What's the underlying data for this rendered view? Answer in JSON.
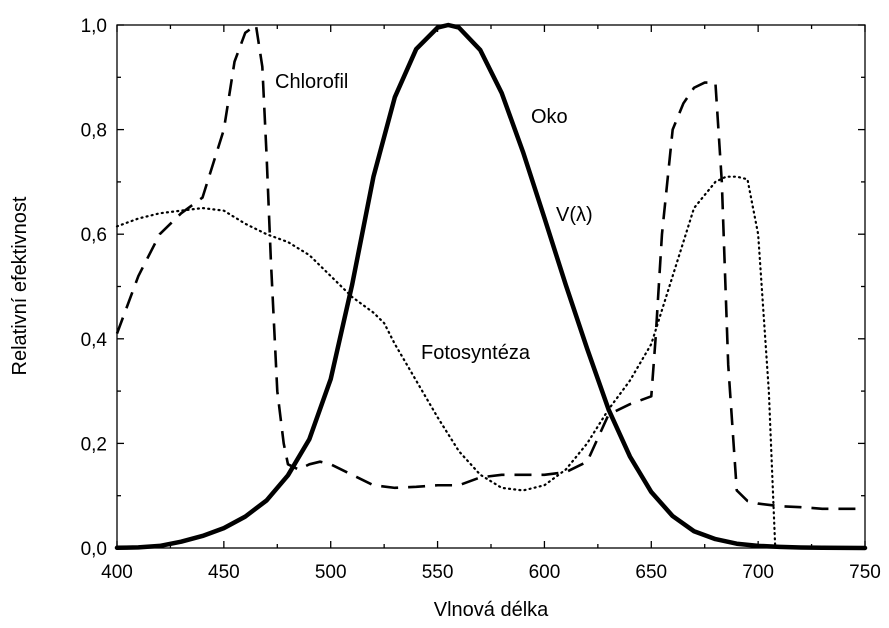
{
  "chart_data": {
    "type": "line",
    "title": "",
    "xlabel": "Vlnová délka",
    "ylabel": "Relativní efektivnost",
    "xlim": [
      400,
      750
    ],
    "ylim": [
      0,
      1
    ],
    "xticks": [
      400,
      450,
      500,
      550,
      600,
      650,
      700,
      750
    ],
    "xtick_labels": [
      "400",
      "450",
      "500",
      "550",
      "600",
      "650",
      "700",
      "750"
    ],
    "yticks": [
      0,
      0.2,
      0.4,
      0.6,
      0.8,
      1.0
    ],
    "ytick_labels": [
      "0,0",
      "0,2",
      "0,4",
      "0,6",
      "0,8",
      "1,0"
    ],
    "grid": false,
    "series": [
      {
        "name": "Oko",
        "style": "solid",
        "color": "#000000",
        "x": [
          400,
          410,
          420,
          430,
          440,
          450,
          460,
          470,
          480,
          490,
          500,
          510,
          520,
          530,
          540,
          550,
          555,
          560,
          570,
          580,
          590,
          600,
          610,
          620,
          630,
          640,
          650,
          660,
          670,
          680,
          690,
          700,
          710,
          720,
          730,
          740,
          750
        ],
        "y": [
          0.0004,
          0.0012,
          0.004,
          0.012,
          0.023,
          0.038,
          0.06,
          0.091,
          0.139,
          0.208,
          0.323,
          0.503,
          0.71,
          0.862,
          0.954,
          0.995,
          1.0,
          0.995,
          0.952,
          0.87,
          0.757,
          0.631,
          0.503,
          0.381,
          0.265,
          0.175,
          0.107,
          0.061,
          0.032,
          0.017,
          0.0082,
          0.0041,
          0.0021,
          0.001,
          0.0005,
          0.0002,
          0.0001
        ]
      },
      {
        "name": "Chlorofil",
        "style": "dashed",
        "color": "#000000",
        "x": [
          400,
          410,
          420,
          430,
          440,
          450,
          455,
          460,
          465,
          468,
          470,
          472,
          475,
          478,
          480,
          485,
          490,
          495,
          500,
          510,
          520,
          530,
          540,
          550,
          560,
          570,
          580,
          590,
          600,
          610,
          620,
          630,
          640,
          650,
          652,
          655,
          660,
          665,
          670,
          675,
          680,
          683,
          686,
          690,
          695,
          700,
          710,
          720,
          730,
          740,
          750
        ],
        "y": [
          0.41,
          0.52,
          0.6,
          0.64,
          0.67,
          0.8,
          0.93,
          0.985,
          1.0,
          0.92,
          0.75,
          0.55,
          0.3,
          0.2,
          0.16,
          0.15,
          0.16,
          0.165,
          0.16,
          0.14,
          0.12,
          0.115,
          0.117,
          0.12,
          0.12,
          0.135,
          0.14,
          0.14,
          0.14,
          0.145,
          0.165,
          0.255,
          0.275,
          0.29,
          0.4,
          0.6,
          0.8,
          0.85,
          0.88,
          0.89,
          0.89,
          0.7,
          0.35,
          0.11,
          0.09,
          0.085,
          0.08,
          0.078,
          0.075,
          0.075,
          0.075
        ]
      },
      {
        "name": "Fotosyntéza",
        "style": "dotted",
        "color": "#000000",
        "x": [
          400,
          410,
          420,
          430,
          440,
          450,
          460,
          470,
          480,
          490,
          500,
          510,
          520,
          525,
          530,
          540,
          550,
          560,
          570,
          580,
          590,
          600,
          610,
          620,
          630,
          640,
          650,
          660,
          670,
          680,
          685,
          690,
          695,
          700,
          705,
          708
        ],
        "y": [
          0.615,
          0.63,
          0.64,
          0.645,
          0.65,
          0.645,
          0.62,
          0.6,
          0.585,
          0.56,
          0.52,
          0.48,
          0.45,
          0.43,
          0.39,
          0.32,
          0.25,
          0.185,
          0.14,
          0.115,
          0.11,
          0.12,
          0.15,
          0.2,
          0.265,
          0.32,
          0.39,
          0.52,
          0.65,
          0.7,
          0.71,
          0.71,
          0.705,
          0.6,
          0.3,
          0.0
        ]
      }
    ],
    "annotations": {
      "chlorofil": "Chlorofil",
      "oko": "Oko",
      "v_lambda": "V(λ)",
      "fotosynteza": "Fotosyntéza"
    }
  }
}
